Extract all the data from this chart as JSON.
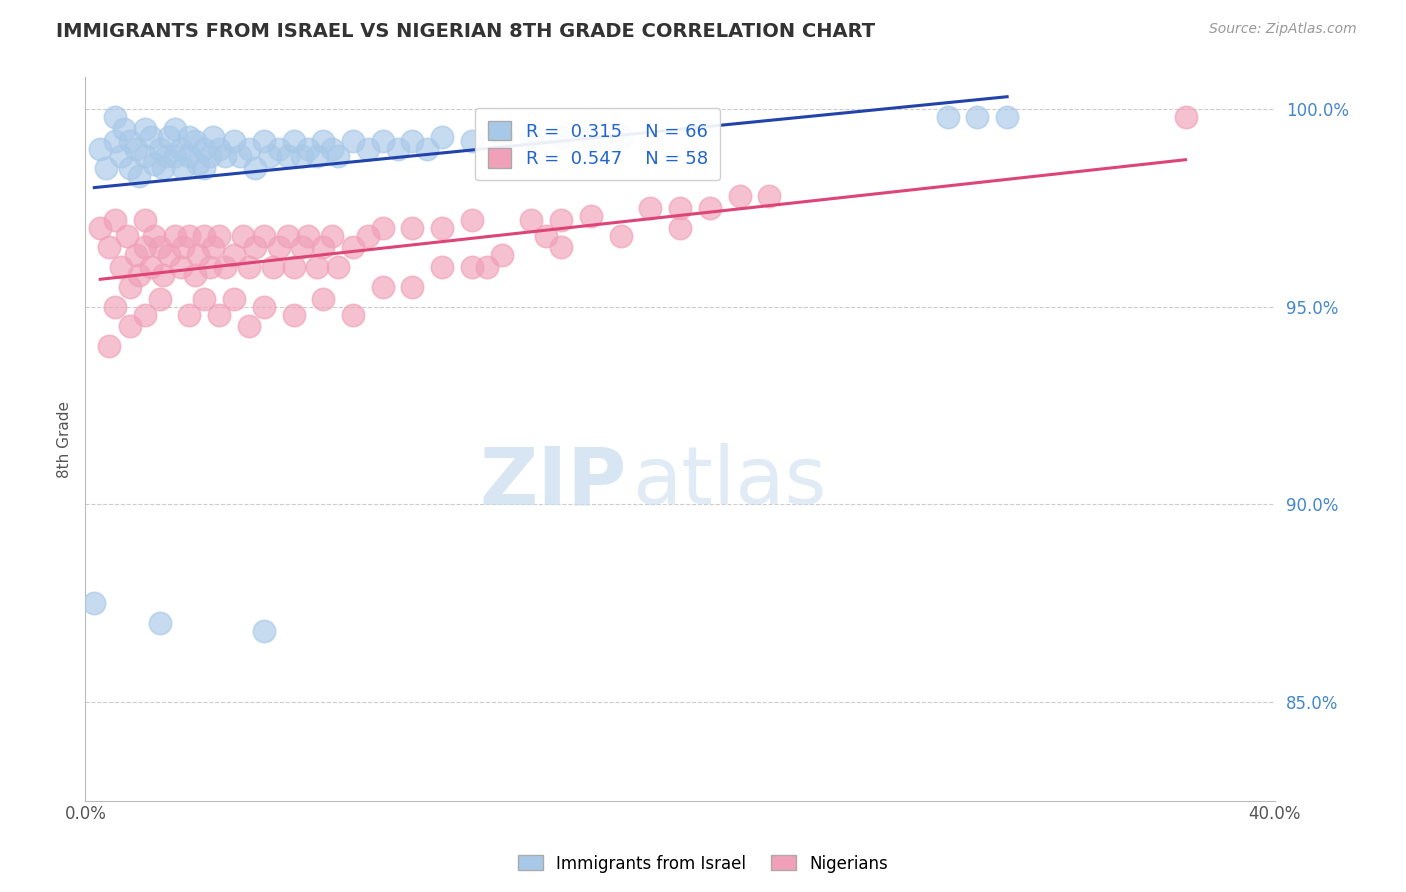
{
  "title": "IMMIGRANTS FROM ISRAEL VS NIGERIAN 8TH GRADE CORRELATION CHART",
  "source": "Source: ZipAtlas.com",
  "ylabel": "8th Grade",
  "yaxis_labels": [
    "100.0%",
    "95.0%",
    "90.0%",
    "85.0%"
  ],
  "yaxis_values": [
    1.0,
    0.95,
    0.9,
    0.85
  ],
  "xlim": [
    0.0,
    0.4
  ],
  "ylim": [
    0.825,
    1.008
  ],
  "blue_r": 0.315,
  "blue_n": 66,
  "pink_r": 0.547,
  "pink_n": 58,
  "blue_color": "#A8C8E8",
  "pink_color": "#F0A0B8",
  "blue_line_color": "#2244AA",
  "pink_line_color": "#DD4477",
  "legend_label_blue": "Immigrants from Israel",
  "legend_label_pink": "Nigerians",
  "watermark_zip": "ZIP",
  "watermark_atlas": "atlas",
  "background_color": "#FFFFFF",
  "grid_color": "#CCCCCC",
  "blue_x": [
    0.005,
    0.007,
    0.01,
    0.01,
    0.012,
    0.013,
    0.015,
    0.015,
    0.017,
    0.018,
    0.02,
    0.02,
    0.022,
    0.023,
    0.025,
    0.026,
    0.027,
    0.028,
    0.03,
    0.03,
    0.032,
    0.033,
    0.035,
    0.035,
    0.037,
    0.038,
    0.04,
    0.04,
    0.042,
    0.043,
    0.045,
    0.047,
    0.05,
    0.052,
    0.055,
    0.057,
    0.06,
    0.062,
    0.065,
    0.068,
    0.07,
    0.073,
    0.075,
    0.078,
    0.08,
    0.083,
    0.085,
    0.09,
    0.095,
    0.1,
    0.105,
    0.11,
    0.115,
    0.12,
    0.13,
    0.14,
    0.15,
    0.16,
    0.17,
    0.18,
    0.29,
    0.3,
    0.31,
    0.003,
    0.025,
    0.06
  ],
  "blue_y": [
    0.99,
    0.985,
    0.998,
    0.992,
    0.988,
    0.995,
    0.992,
    0.985,
    0.99,
    0.983,
    0.995,
    0.988,
    0.993,
    0.986,
    0.99,
    0.985,
    0.988,
    0.993,
    0.995,
    0.988,
    0.99,
    0.985,
    0.993,
    0.988,
    0.992,
    0.986,
    0.99,
    0.985,
    0.988,
    0.993,
    0.99,
    0.988,
    0.992,
    0.988,
    0.99,
    0.985,
    0.992,
    0.988,
    0.99,
    0.988,
    0.992,
    0.988,
    0.99,
    0.988,
    0.992,
    0.99,
    0.988,
    0.992,
    0.99,
    0.992,
    0.99,
    0.992,
    0.99,
    0.993,
    0.992,
    0.993,
    0.993,
    0.993,
    0.993,
    0.993,
    0.998,
    0.998,
    0.998,
    0.875,
    0.87,
    0.868
  ],
  "pink_x": [
    0.005,
    0.008,
    0.01,
    0.012,
    0.014,
    0.015,
    0.017,
    0.018,
    0.02,
    0.02,
    0.022,
    0.023,
    0.025,
    0.026,
    0.028,
    0.03,
    0.032,
    0.033,
    0.035,
    0.037,
    0.038,
    0.04,
    0.042,
    0.043,
    0.045,
    0.047,
    0.05,
    0.053,
    0.055,
    0.057,
    0.06,
    0.063,
    0.065,
    0.068,
    0.07,
    0.073,
    0.075,
    0.078,
    0.08,
    0.083,
    0.085,
    0.09,
    0.095,
    0.1,
    0.11,
    0.12,
    0.13,
    0.15,
    0.155,
    0.16,
    0.17,
    0.19,
    0.2,
    0.21,
    0.22,
    0.23,
    0.37
  ],
  "pink_y": [
    0.97,
    0.965,
    0.972,
    0.96,
    0.968,
    0.955,
    0.963,
    0.958,
    0.965,
    0.972,
    0.96,
    0.968,
    0.965,
    0.958,
    0.963,
    0.968,
    0.96,
    0.965,
    0.968,
    0.958,
    0.963,
    0.968,
    0.96,
    0.965,
    0.968,
    0.96,
    0.963,
    0.968,
    0.96,
    0.965,
    0.968,
    0.96,
    0.965,
    0.968,
    0.96,
    0.965,
    0.968,
    0.96,
    0.965,
    0.968,
    0.96,
    0.965,
    0.968,
    0.97,
    0.97,
    0.97,
    0.972,
    0.972,
    0.968,
    0.972,
    0.973,
    0.975,
    0.975,
    0.975,
    0.978,
    0.978,
    0.998
  ],
  "pink_extra_x": [
    0.008,
    0.01,
    0.015,
    0.02,
    0.025,
    0.035,
    0.04,
    0.045,
    0.05,
    0.055,
    0.06,
    0.07,
    0.08,
    0.09,
    0.1,
    0.11,
    0.12,
    0.13,
    0.135,
    0.14,
    0.16,
    0.18,
    0.2
  ],
  "pink_extra_y": [
    0.94,
    0.95,
    0.945,
    0.948,
    0.952,
    0.948,
    0.952,
    0.948,
    0.952,
    0.945,
    0.95,
    0.948,
    0.952,
    0.948,
    0.955,
    0.955,
    0.96,
    0.96,
    0.96,
    0.963,
    0.965,
    0.968,
    0.97
  ]
}
